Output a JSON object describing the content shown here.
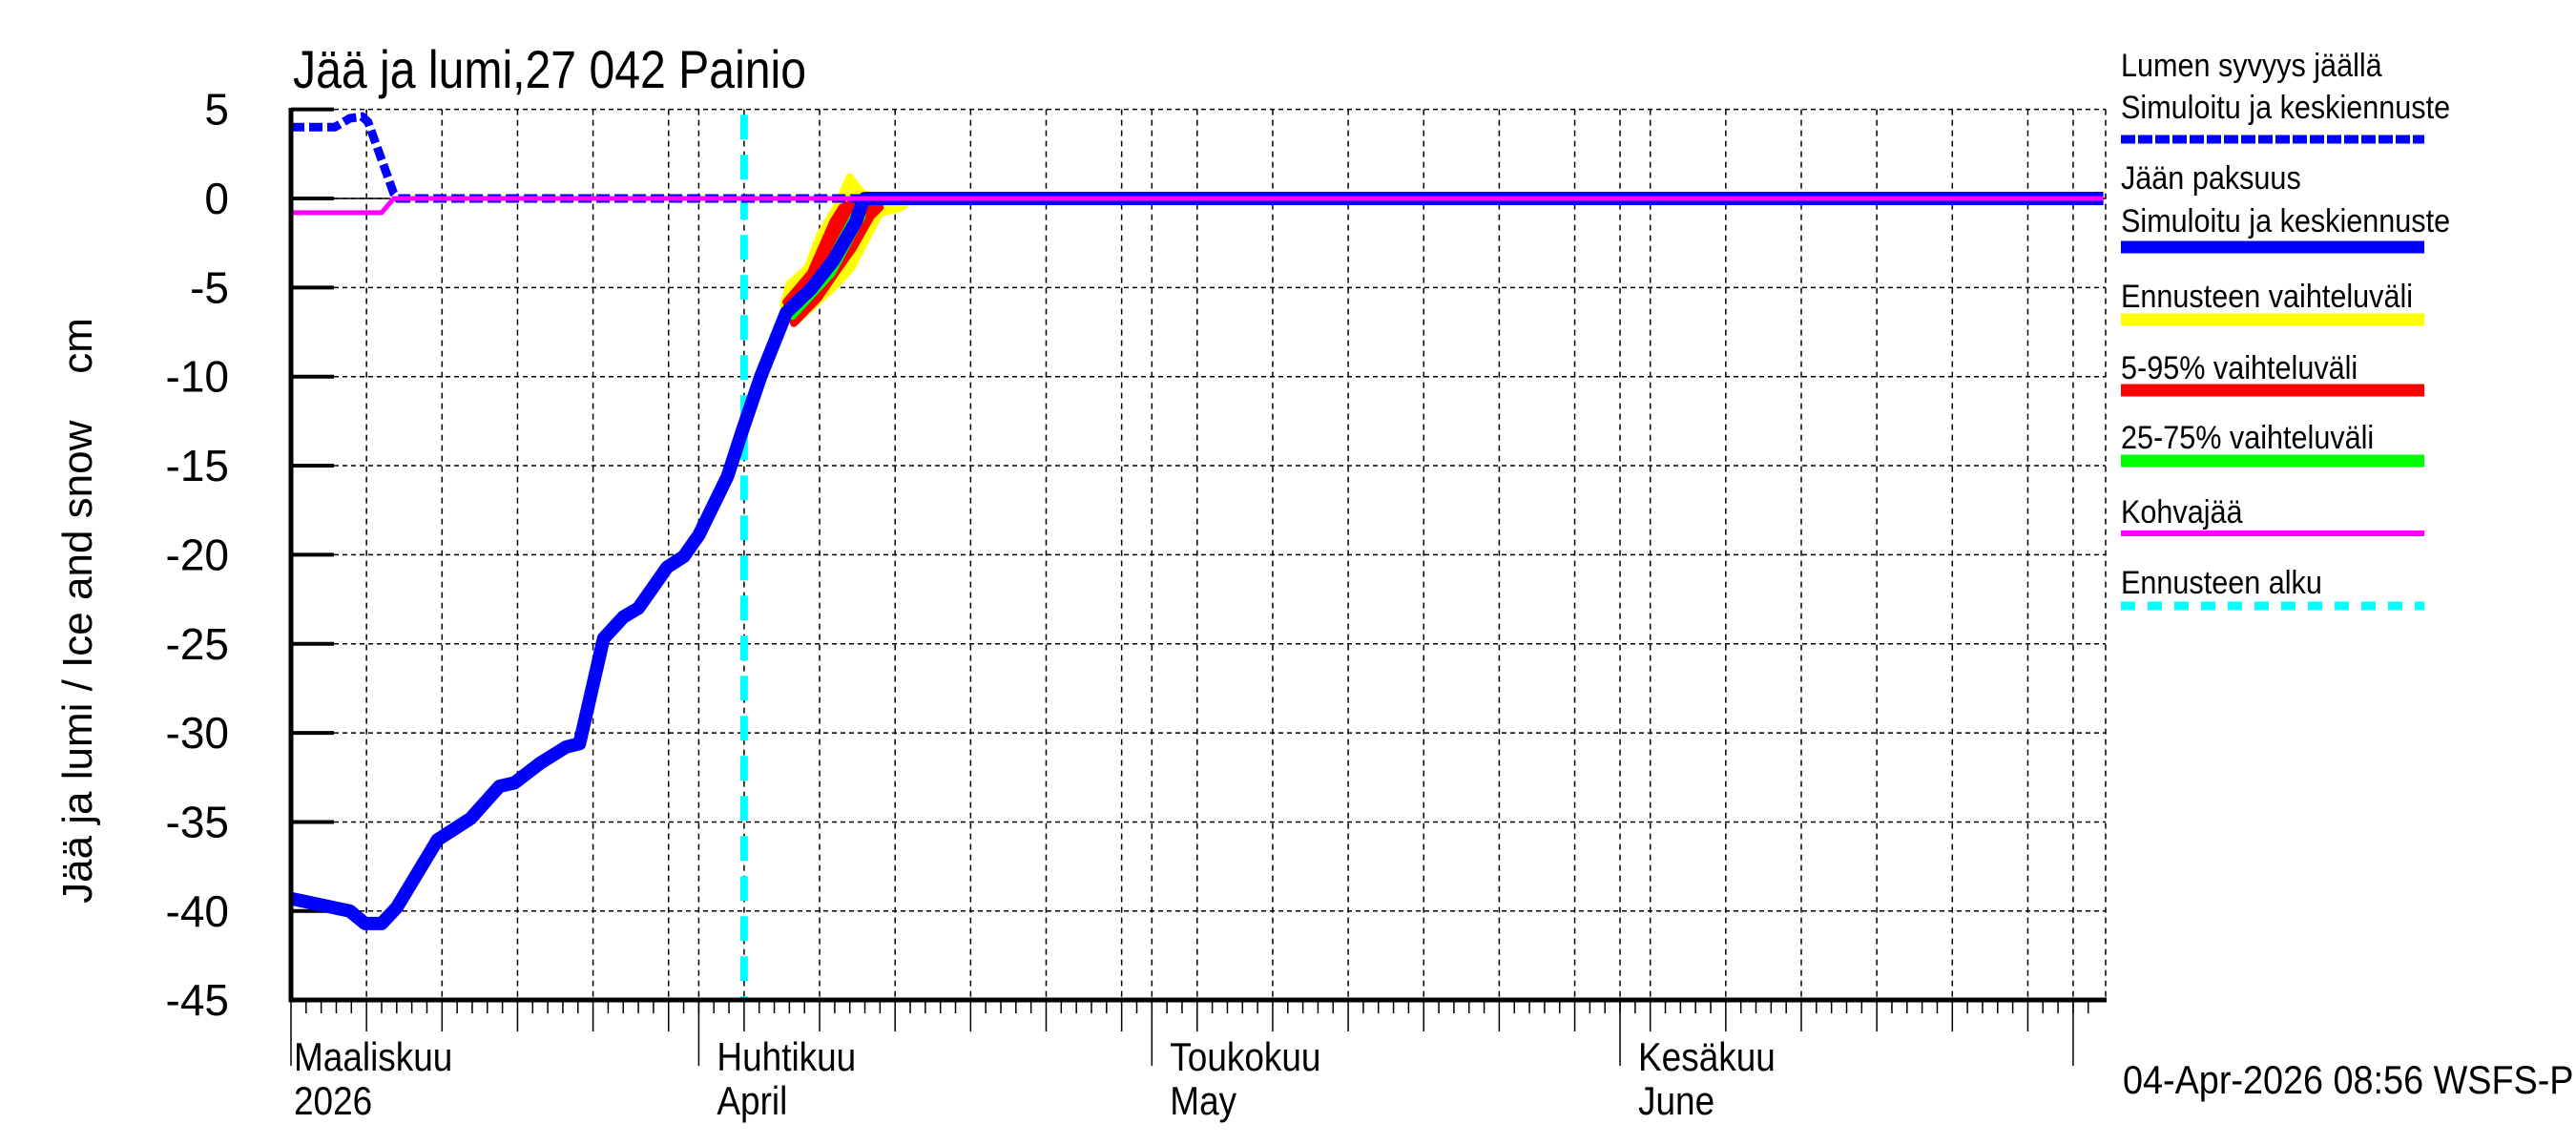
{
  "chart_data": {
    "type": "line",
    "title": "Jää ja lumi,27 042 Painio",
    "xlabel": "",
    "ylabel": "Jää ja lumi / Ice and snow    cm",
    "ylim": [
      -45,
      5
    ],
    "yticks": [
      5,
      0,
      -5,
      -10,
      -15,
      -20,
      -25,
      -30,
      -35,
      -40,
      -45
    ],
    "x_axis": {
      "start_date": "2026-03-05",
      "end_date": "2026-07-03",
      "grid_every_days": 5,
      "month_labels": [
        {
          "fi": "Maaliskuu",
          "en": "2026",
          "day_index": 0
        },
        {
          "fi": "Huhtikuu",
          "en": "April",
          "day_index": 27
        },
        {
          "fi": "Toukokuu",
          "en": "May",
          "day_index": 57
        },
        {
          "fi": "Kesäkuu",
          "en": "June",
          "day_index": 88
        }
      ],
      "month_boundaries_day_index": [
        0,
        27,
        57,
        88,
        118
      ]
    },
    "grid": true,
    "legend_position": "right",
    "forecast_start_day_index": 30,
    "series": [
      {
        "name": "Lumen syvyys jäällä – Simuloitu ja keskiennuste",
        "color": "#0000ff",
        "style": "dotted",
        "width": 9,
        "points": [
          [
            0,
            4.0
          ],
          [
            2.9,
            4.0
          ],
          [
            3.9,
            4.5
          ],
          [
            4.7,
            4.6
          ],
          [
            5.1,
            4.3
          ],
          [
            6.8,
            0.3
          ],
          [
            7.1,
            0
          ],
          [
            120,
            0
          ]
        ]
      },
      {
        "name": "Jään paksuus – Simuloitu ja keskiennuste",
        "color": "#0000ff",
        "style": "solid",
        "width": 14,
        "points": [
          [
            0,
            -39.3
          ],
          [
            3.9,
            -40.0
          ],
          [
            4.9,
            -40.7
          ],
          [
            6.0,
            -40.7
          ],
          [
            7.0,
            -39.8
          ],
          [
            9.7,
            -36.0
          ],
          [
            11.9,
            -34.8
          ],
          [
            13.8,
            -33.0
          ],
          [
            14.8,
            -32.8
          ],
          [
            16.5,
            -31.7
          ],
          [
            18.2,
            -30.8
          ],
          [
            19.1,
            -30.6
          ],
          [
            20.7,
            -24.7
          ],
          [
            22.0,
            -23.5
          ],
          [
            23.0,
            -23.0
          ],
          [
            24.9,
            -20.7
          ],
          [
            26.0,
            -20.1
          ],
          [
            27.0,
            -18.9
          ],
          [
            28.9,
            -15.6
          ],
          [
            29.9,
            -13.0
          ],
          [
            31.1,
            -10.0
          ],
          [
            32.8,
            -6.4
          ],
          [
            34.4,
            -5.1
          ],
          [
            35.9,
            -3.5
          ],
          [
            37.4,
            -1.3
          ],
          [
            37.8,
            -0.3
          ],
          [
            38.0,
            0
          ],
          [
            120,
            0
          ]
        ]
      },
      {
        "name": "Ennusteen vaihteluväli",
        "color": "#ffff00",
        "style": "band",
        "upper": [
          [
            32.6,
            -6.0
          ],
          [
            33.0,
            -4.8
          ],
          [
            34.2,
            -3.9
          ],
          [
            35.0,
            -2.1
          ],
          [
            36.1,
            -0.5
          ],
          [
            37.0,
            1.2
          ],
          [
            37.8,
            0.3
          ]
        ],
        "lower": [
          [
            33.3,
            -7.0
          ],
          [
            35.9,
            -5.0
          ],
          [
            37.1,
            -3.9
          ],
          [
            38.2,
            -2.1
          ],
          [
            39.0,
            -0.8
          ],
          [
            40.1,
            -0.6
          ],
          [
            40.6,
            -0.4
          ]
        ]
      },
      {
        "name": "5-95% vaihteluväli",
        "color": "#ff0000",
        "style": "band",
        "upper": [
          [
            32.8,
            -5.8
          ],
          [
            34.4,
            -4.2
          ],
          [
            35.9,
            -1.3
          ],
          [
            36.5,
            -0.5
          ],
          [
            37.4,
            -0.2
          ]
        ],
        "lower": [
          [
            33.3,
            -7.0
          ],
          [
            34.9,
            -5.6
          ],
          [
            36.2,
            -4.0
          ],
          [
            37.2,
            -2.8
          ],
          [
            38.4,
            -1.0
          ],
          [
            39.0,
            -0.5
          ]
        ]
      },
      {
        "name": "25-75% vaihteluväli",
        "color": "#00ff00",
        "style": "band",
        "upper": [
          [
            33.0,
            -6.2
          ],
          [
            35.5,
            -3.8
          ],
          [
            37.4,
            -0.8
          ]
        ],
        "lower": [
          [
            33.2,
            -6.6
          ],
          [
            35.8,
            -4.2
          ],
          [
            37.8,
            -1.0
          ]
        ]
      },
      {
        "name": "Kohvajää",
        "color": "#ff00ff",
        "style": "solid",
        "width": 5,
        "points": [
          [
            0,
            -0.8
          ],
          [
            6.0,
            -0.8
          ],
          [
            6.8,
            0
          ],
          [
            120,
            0
          ]
        ]
      },
      {
        "name": "Ennusteen alku",
        "color": "#00ffff",
        "style": "dashed",
        "width": 8,
        "x_day_index": 30
      }
    ]
  },
  "legend": {
    "items": [
      {
        "label1": "Lumen syvyys jäällä",
        "label2": "Simuloitu ja keskiennuste",
        "color": "#0000ff",
        "style": "dotted"
      },
      {
        "label1": "Jään paksuus",
        "label2": "Simuloitu ja keskiennuste",
        "color": "#0000ff",
        "style": "thick"
      },
      {
        "label1": "Ennusteen vaihteluväli",
        "color": "#ffff00",
        "style": "thick"
      },
      {
        "label1": "5-95% vaihteluväli",
        "color": "#ff0000",
        "style": "thick"
      },
      {
        "label1": "25-75% vaihteluväli",
        "color": "#00ff00",
        "style": "thick"
      },
      {
        "label1": "Kohvajää",
        "color": "#ff00ff",
        "style": "thin"
      },
      {
        "label1": "Ennusteen alku",
        "color": "#00ffff",
        "style": "dashed"
      }
    ]
  },
  "footer": {
    "timestamp": "04-Apr-2026 08:56 WSFS-P"
  }
}
